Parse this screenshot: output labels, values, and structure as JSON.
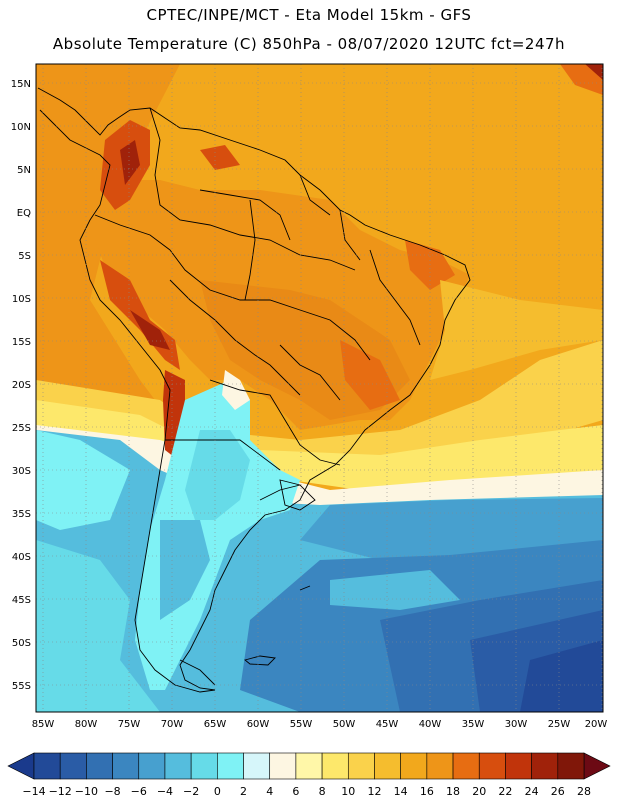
{
  "header": {
    "line1": "CPTEC/INPE/MCT -  Eta Model 15km - GFS",
    "line2": "Absolute Temperature (C) 850hPa - 08/07/2020 12UTC fct=247h"
  },
  "map": {
    "lat_labels": [
      "15N",
      "10N",
      "5N",
      "EQ",
      "5S",
      "10S",
      "15S",
      "20S",
      "25S",
      "30S",
      "35S",
      "40S",
      "45S",
      "50S",
      "55S"
    ],
    "lon_labels": [
      "85W",
      "80W",
      "75W",
      "70W",
      "65W",
      "60W",
      "55W",
      "50W",
      "45W",
      "40W",
      "35W",
      "30W",
      "25W",
      "20W"
    ]
  },
  "colorbar": {
    "ticks": [
      "-14",
      "-12",
      "-10",
      "-8",
      "-6",
      "-4",
      "-2",
      "0",
      "2",
      "4",
      "6",
      "8",
      "10",
      "12",
      "14",
      "16",
      "18",
      "20",
      "22",
      "24",
      "26",
      "28"
    ],
    "colors": [
      "#1a3a8c",
      "#224a98",
      "#2a5ca6",
      "#3270b2",
      "#3b86c0",
      "#47a0cf",
      "#55bddd",
      "#66dbe8",
      "#7ff2f5",
      "#d6f6fa",
      "#fdf6e2",
      "#fff7a8",
      "#fde86b",
      "#fad24b",
      "#f5bd2e",
      "#f2a81c",
      "#ee9518",
      "#e76d12",
      "#d74e0e",
      "#c1340b",
      "#a0220a",
      "#801709",
      "#6c0a14"
    ]
  }
}
